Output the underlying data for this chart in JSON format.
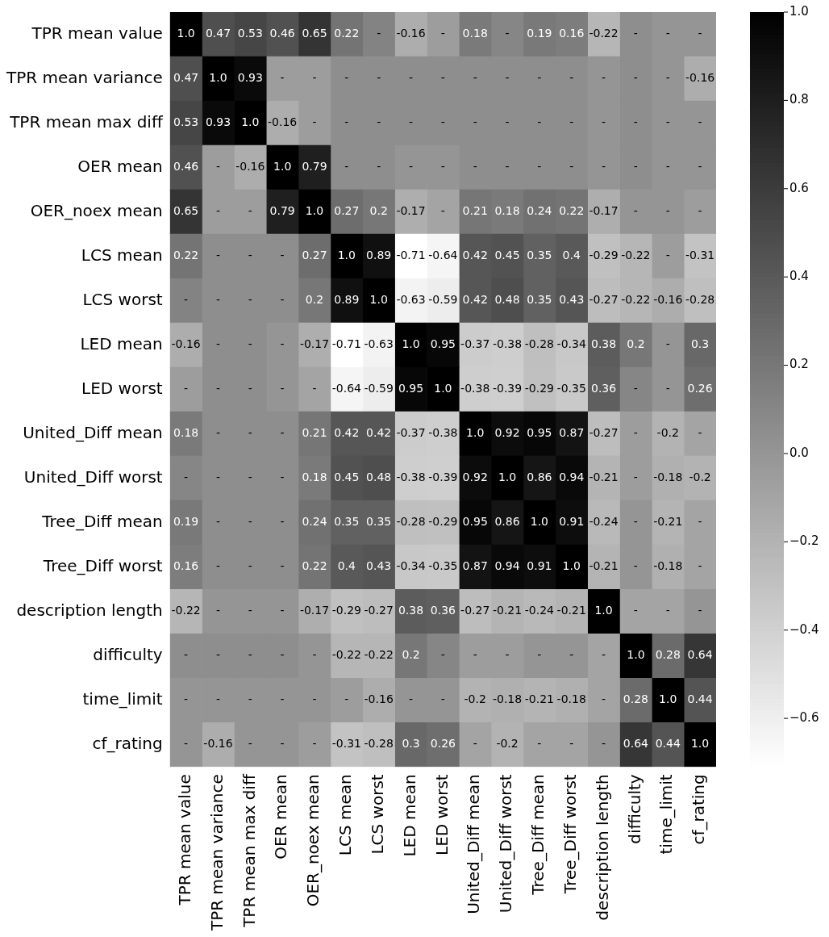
{
  "chart_data": {
    "type": "heatmap",
    "categories": [
      "TPR mean value",
      "TPR mean variance",
      "TPR mean max diff",
      "OER mean",
      "OER_noex mean",
      "LCS mean",
      "LCS worst",
      "LED mean",
      "LED worst",
      "United_Diff mean",
      "United_Diff worst",
      "Tree_Diff mean",
      "Tree_Diff worst",
      "description length",
      "difficulty",
      "time_limit",
      "cf_rating"
    ],
    "y_categories": [
      "TPR mean value",
      "TPR mean variance",
      "TPR mean max diff",
      "OER mean",
      "OER_noex mean",
      "LCS mean",
      "LCS worst",
      "LED mean",
      "LED worst",
      "United_Diff mean",
      "United_Diff worst",
      "Tree_Diff mean",
      "Tree_Diff worst",
      "description length",
      "difficulty",
      "time_limit",
      "cf_rating"
    ],
    "cells": [
      [
        1.0,
        0.47,
        0.53,
        0.46,
        0.65,
        0.22,
        0.12,
        -0.16,
        -0.05,
        0.18,
        0.1,
        0.19,
        0.16,
        -0.22,
        0.05,
        0.0,
        0.0
      ],
      [
        0.47,
        1.0,
        0.93,
        -0.05,
        -0.05,
        0.05,
        0.05,
        0.05,
        0.05,
        0.05,
        0.05,
        0.05,
        0.05,
        0.0,
        0.05,
        0.0,
        -0.16
      ],
      [
        0.53,
        0.93,
        1.0,
        -0.16,
        -0.05,
        0.05,
        0.05,
        0.05,
        0.05,
        0.05,
        0.05,
        0.05,
        0.05,
        0.0,
        0.05,
        0.0,
        0.0
      ],
      [
        0.46,
        -0.05,
        -0.16,
        1.0,
        0.79,
        0.05,
        0.05,
        0.0,
        0.0,
        0.05,
        0.05,
        0.05,
        0.05,
        0.0,
        0.05,
        0.0,
        0.0
      ],
      [
        0.65,
        -0.05,
        -0.05,
        0.79,
        1.0,
        0.27,
        0.2,
        -0.17,
        -0.1,
        0.21,
        0.18,
        0.24,
        0.22,
        -0.17,
        0.0,
        0.0,
        -0.05
      ],
      [
        0.22,
        0.05,
        0.05,
        0.05,
        0.27,
        1.0,
        0.89,
        -0.71,
        -0.64,
        0.42,
        0.45,
        0.35,
        0.4,
        -0.29,
        -0.22,
        -0.05,
        -0.31
      ],
      [
        0.12,
        0.05,
        0.05,
        0.05,
        0.2,
        0.89,
        1.0,
        -0.63,
        -0.59,
        0.42,
        0.48,
        0.35,
        0.43,
        -0.27,
        -0.22,
        -0.16,
        -0.28
      ],
      [
        -0.16,
        0.05,
        0.05,
        0.0,
        -0.17,
        -0.71,
        -0.63,
        1.0,
        0.95,
        -0.37,
        -0.38,
        -0.28,
        -0.34,
        0.38,
        0.2,
        0.0,
        0.3
      ],
      [
        -0.05,
        0.05,
        0.05,
        0.0,
        -0.1,
        -0.64,
        -0.59,
        0.95,
        1.0,
        -0.38,
        -0.39,
        -0.29,
        -0.35,
        0.36,
        0.1,
        0.0,
        0.26
      ],
      [
        0.18,
        0.05,
        0.05,
        0.05,
        0.21,
        0.42,
        0.42,
        -0.37,
        -0.38,
        1.0,
        0.92,
        0.95,
        0.87,
        -0.27,
        -0.05,
        -0.2,
        -0.1
      ],
      [
        0.1,
        0.05,
        0.05,
        0.05,
        0.18,
        0.45,
        0.48,
        -0.38,
        -0.39,
        0.92,
        1.0,
        0.86,
        0.94,
        -0.21,
        -0.05,
        -0.18,
        -0.2
      ],
      [
        0.19,
        0.05,
        0.05,
        0.05,
        0.24,
        0.35,
        0.35,
        -0.28,
        -0.29,
        0.95,
        0.86,
        1.0,
        0.91,
        -0.24,
        0.0,
        -0.21,
        -0.1
      ],
      [
        0.16,
        0.05,
        0.05,
        0.05,
        0.22,
        0.4,
        0.43,
        -0.34,
        -0.35,
        0.87,
        0.94,
        0.91,
        1.0,
        -0.21,
        0.0,
        -0.18,
        -0.1
      ],
      [
        -0.22,
        0.0,
        0.0,
        0.0,
        -0.17,
        -0.29,
        -0.27,
        0.38,
        0.36,
        -0.27,
        -0.21,
        -0.24,
        -0.21,
        1.0,
        -0.1,
        -0.1,
        0.0
      ],
      [
        0.05,
        0.05,
        0.05,
        0.05,
        0.0,
        -0.22,
        -0.22,
        0.2,
        0.1,
        -0.05,
        -0.05,
        0.0,
        0.0,
        -0.1,
        1.0,
        0.28,
        0.64
      ],
      [
        0.0,
        0.0,
        0.0,
        0.0,
        0.0,
        -0.05,
        -0.16,
        0.0,
        0.0,
        -0.2,
        -0.18,
        -0.21,
        -0.18,
        -0.1,
        0.28,
        1.0,
        0.44
      ],
      [
        0.0,
        -0.16,
        0.0,
        0.0,
        -0.05,
        -0.31,
        -0.28,
        0.3,
        0.26,
        -0.1,
        -0.2,
        -0.1,
        -0.1,
        0.0,
        0.64,
        0.44,
        1.0
      ]
    ],
    "cell_labels": [
      [
        "1.0",
        "0.47",
        "0.53",
        "0.46",
        "0.65",
        "0.22",
        "-",
        "-0.16",
        "-",
        "0.18",
        "-",
        "0.19",
        "0.16",
        "-0.22",
        "-",
        "-",
        "-"
      ],
      [
        "0.47",
        "1.0",
        "0.93",
        "-",
        "-",
        "-",
        "-",
        "-",
        "-",
        "-",
        "-",
        "-",
        "-",
        "-",
        "-",
        "-",
        "-0.16"
      ],
      [
        "0.53",
        "0.93",
        "1.0",
        "-0.16",
        "-",
        "-",
        "-",
        "-",
        "-",
        "-",
        "-",
        "-",
        "-",
        "-",
        "-",
        "-",
        "-"
      ],
      [
        "0.46",
        "-",
        "-0.16",
        "1.0",
        "0.79",
        "-",
        "-",
        "-",
        "-",
        "-",
        "-",
        "-",
        "-",
        "-",
        "-",
        "-",
        "-"
      ],
      [
        "0.65",
        "-",
        "-",
        "0.79",
        "1.0",
        "0.27",
        "0.2",
        "-0.17",
        "-",
        "0.21",
        "0.18",
        "0.24",
        "0.22",
        "-0.17",
        "-",
        "-",
        "-"
      ],
      [
        "0.22",
        "-",
        "-",
        "-",
        "0.27",
        "1.0",
        "0.89",
        "-0.71",
        "-0.64",
        "0.42",
        "0.45",
        "0.35",
        "0.4",
        "-0.29",
        "-0.22",
        "-",
        "-0.31"
      ],
      [
        "-",
        "-",
        "-",
        "-",
        "0.2",
        "0.89",
        "1.0",
        "-0.63",
        "-0.59",
        "0.42",
        "0.48",
        "0.35",
        "0.43",
        "-0.27",
        "-0.22",
        "-0.16",
        "-0.28"
      ],
      [
        "-0.16",
        "-",
        "-",
        "-",
        "-0.17",
        "-0.71",
        "-0.63",
        "1.0",
        "0.95",
        "-0.37",
        "-0.38",
        "-0.28",
        "-0.34",
        "0.38",
        "0.2",
        "-",
        "0.3"
      ],
      [
        "-",
        "-",
        "-",
        "-",
        "-",
        "-0.64",
        "-0.59",
        "0.95",
        "1.0",
        "-0.38",
        "-0.39",
        "-0.29",
        "-0.35",
        "0.36",
        "-",
        "-",
        "0.26"
      ],
      [
        "0.18",
        "-",
        "-",
        "-",
        "0.21",
        "0.42",
        "0.42",
        "-0.37",
        "-0.38",
        "1.0",
        "0.92",
        "0.95",
        "0.87",
        "-0.27",
        "-",
        "-0.2",
        "-"
      ],
      [
        "-",
        "-",
        "-",
        "-",
        "0.18",
        "0.45",
        "0.48",
        "-0.38",
        "-0.39",
        "0.92",
        "1.0",
        "0.86",
        "0.94",
        "-0.21",
        "-",
        "-0.18",
        "-0.2"
      ],
      [
        "0.19",
        "-",
        "-",
        "-",
        "0.24",
        "0.35",
        "0.35",
        "-0.28",
        "-0.29",
        "0.95",
        "0.86",
        "1.0",
        "0.91",
        "-0.24",
        "-",
        "-0.21",
        "-"
      ],
      [
        "0.16",
        "-",
        "-",
        "-",
        "0.22",
        "0.4",
        "0.43",
        "-0.34",
        "-0.35",
        "0.87",
        "0.94",
        "0.91",
        "1.0",
        "-0.21",
        "-",
        "-0.18",
        "-"
      ],
      [
        "-0.22",
        "-",
        "-",
        "-",
        "-0.17",
        "-0.29",
        "-0.27",
        "0.38",
        "0.36",
        "-0.27",
        "-0.21",
        "-0.24",
        "-0.21",
        "1.0",
        "-",
        "-",
        "-"
      ],
      [
        "-",
        "-",
        "-",
        "-",
        "-",
        "-0.22",
        "-0.22",
        "0.2",
        "-",
        "-",
        "-",
        "-",
        "-",
        "-",
        "1.0",
        "0.28",
        "0.64"
      ],
      [
        "-",
        "-",
        "-",
        "-",
        "-",
        "-",
        "-0.16",
        "-",
        "-",
        "-0.2",
        "-0.18",
        "-0.21",
        "-0.18",
        "-",
        "0.28",
        "1.0",
        "0.44"
      ],
      [
        "-",
        "-0.16",
        "-",
        "-",
        "-",
        "-0.31",
        "-0.28",
        "0.3",
        "0.26",
        "-",
        "-0.2",
        "-",
        "-",
        "-",
        "0.64",
        "0.44",
        "1.0"
      ]
    ],
    "clim": [
      -0.71,
      1.0
    ],
    "cticks": [
      {
        "value": -0.6,
        "label": "−0.6"
      },
      {
        "value": -0.4,
        "label": "−0.4"
      },
      {
        "value": -0.2,
        "label": "−0.2"
      },
      {
        "value": 0.0,
        "label": "0.0"
      },
      {
        "value": 0.2,
        "label": "0.2"
      },
      {
        "value": 0.4,
        "label": "0.4"
      },
      {
        "value": 0.6,
        "label": "0.6"
      },
      {
        "value": 0.8,
        "label": "0.8"
      },
      {
        "value": 1.0,
        "label": "1.0"
      }
    ]
  }
}
